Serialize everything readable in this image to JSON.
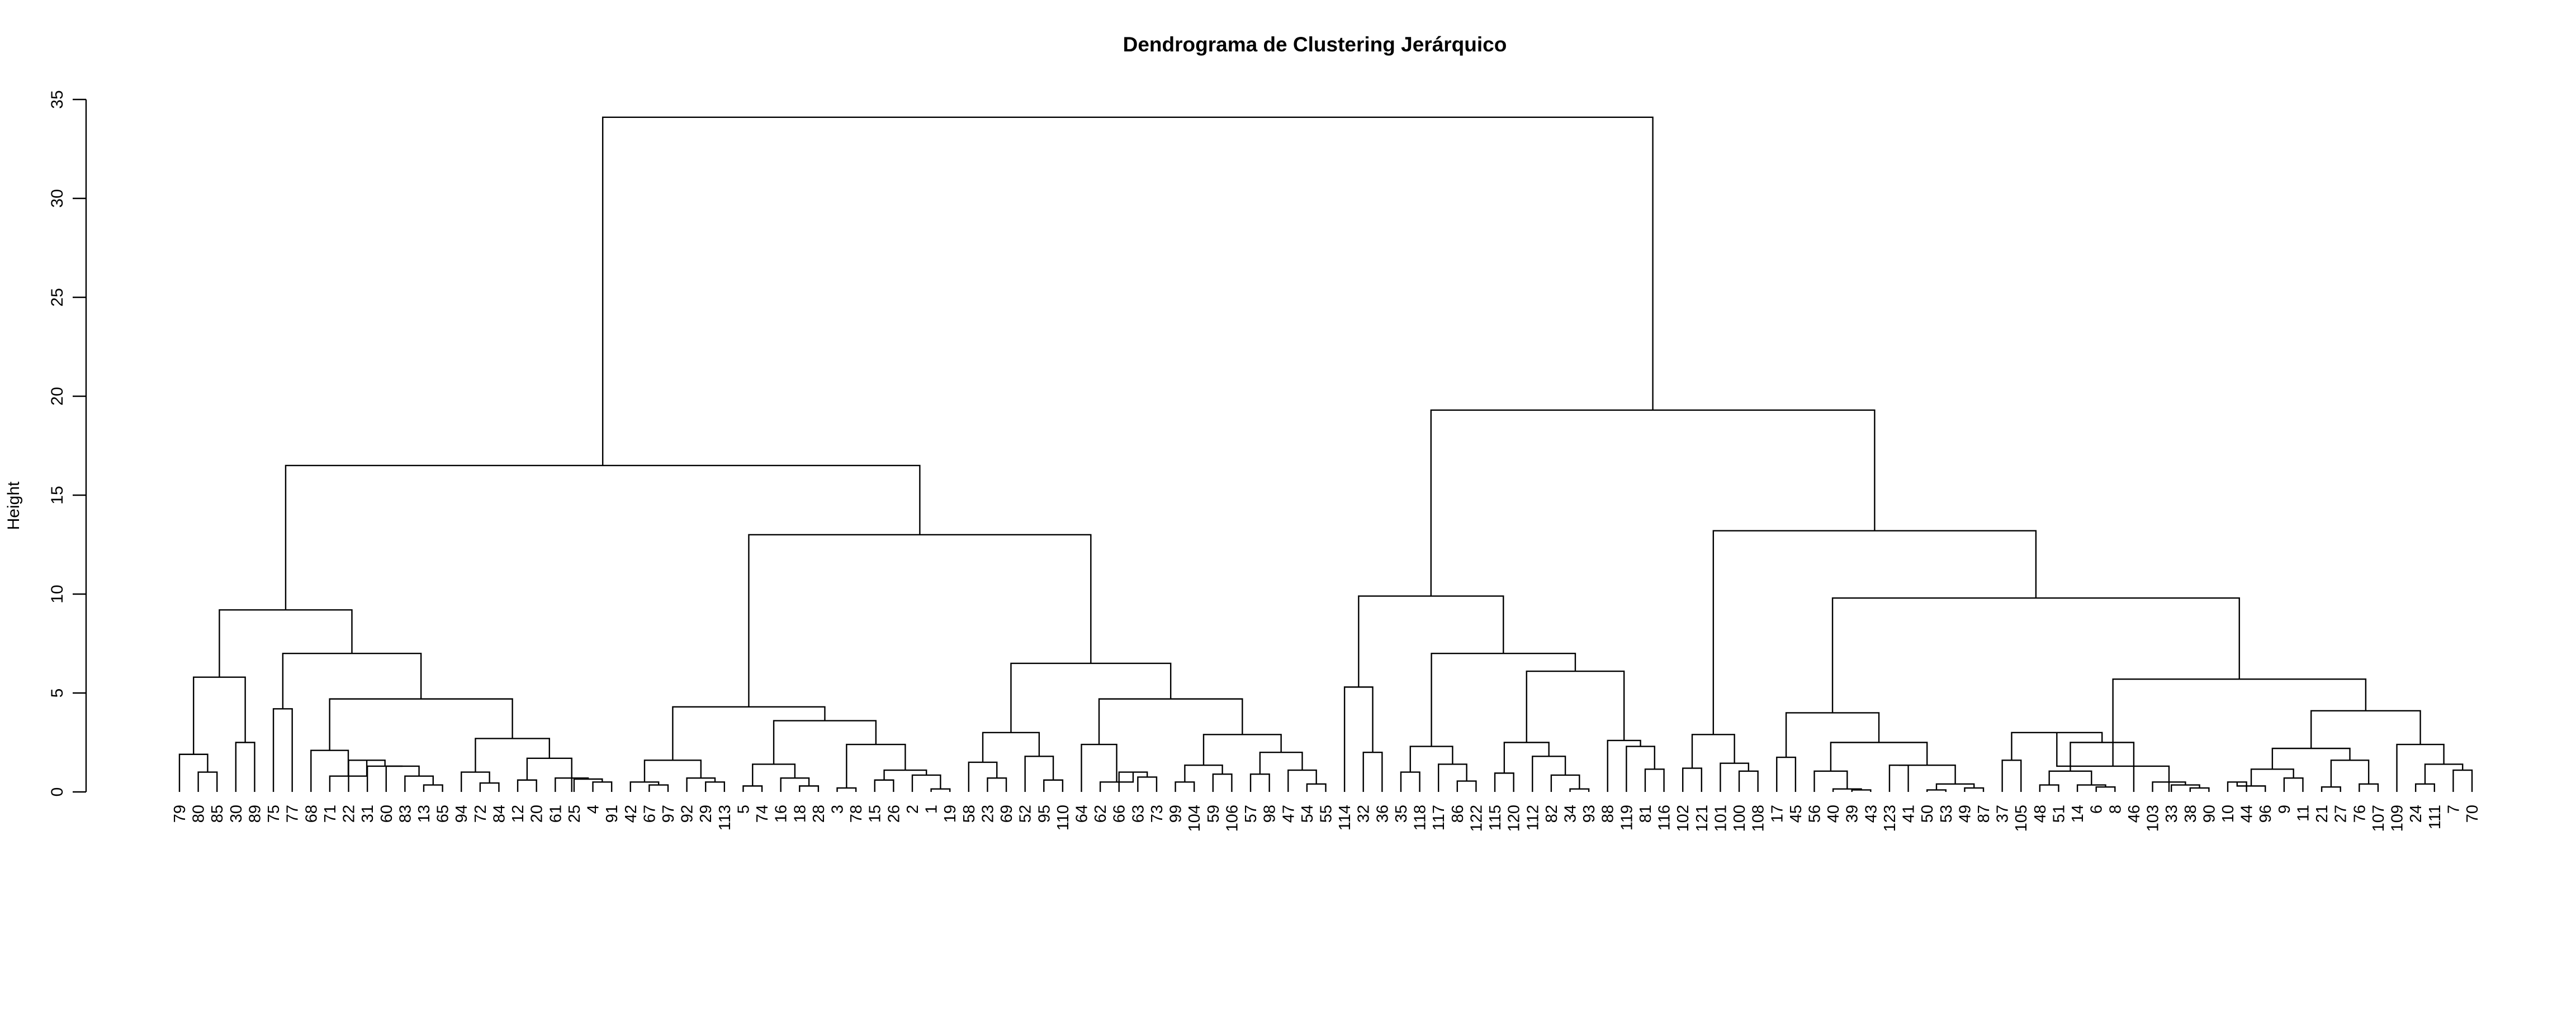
{
  "chart_data": {
    "type": "dendrogram",
    "title": "Dendrograma de Clustering Jerárquico",
    "ylabel": "Height",
    "xlabel": "",
    "ylim": [
      0,
      35
    ],
    "yticks": [
      "0",
      "5",
      "10",
      "15",
      "20",
      "25",
      "30",
      "35"
    ],
    "leaf_order": [
      "79",
      "80",
      "85",
      "30",
      "89",
      "75",
      "77",
      "68",
      "71",
      "22",
      "31",
      "60",
      "83",
      "13",
      "65",
      "94",
      "72",
      "84",
      "12",
      "20",
      "61",
      "25",
      "4",
      "91",
      "42",
      "67",
      "97",
      "92",
      "29",
      "113",
      "5",
      "74",
      "16",
      "18",
      "28",
      "3",
      "78",
      "15",
      "26",
      "2",
      "1",
      "19",
      "58",
      "23",
      "69",
      "52",
      "95",
      "110",
      "64",
      "62",
      "66",
      "63",
      "73",
      "99",
      "104",
      "59",
      "106",
      "57",
      "98",
      "47",
      "54",
      "55",
      "114",
      "32",
      "36",
      "35",
      "118",
      "117",
      "86",
      "122",
      "115",
      "120",
      "112",
      "82",
      "34",
      "93",
      "88",
      "119",
      "81",
      "116",
      "102",
      "121",
      "101",
      "100",
      "108",
      "17",
      "45",
      "56",
      "40",
      "39",
      "43",
      "123",
      "41",
      "50",
      "53",
      "49",
      "87",
      "37",
      "105",
      "48",
      "51",
      "14",
      "6",
      "8",
      "46",
      "103",
      "33",
      "38",
      "90",
      "10",
      "44",
      "96",
      "9",
      "11",
      "21",
      "27",
      "76",
      "107",
      "109",
      "24",
      "111",
      "7",
      "70"
    ],
    "merges": [
      [
        0,
        [
          1,
          2
        ],
        2
      ],
      [
        1,
        [
          80,
          85
        ],
        1
      ],
      [
        1,
        [
          79,
          0
        ],
        1.9
      ],
      [
        0,
        [
          30,
          89
        ],
        2.5
      ],
      [
        1,
        [
          2,
          3
        ],
        5.8
      ],
      [
        0,
        [
          75,
          77
        ],
        4.2
      ],
      [
        0,
        [
          68,
          0
        ],
        2.1
      ],
      [
        0,
        [
          71,
          0
        ],
        1.9
      ],
      [
        0,
        [
          22,
          0
        ],
        1.6
      ],
      [
        0,
        [
          31,
          0
        ],
        1.3
      ],
      [
        0,
        [
          60,
          0
        ],
        1.3
      ],
      [
        0,
        [
          83,
          0
        ],
        0.8
      ],
      [
        0,
        [
          13,
          65
        ],
        0.35
      ],
      [
        0,
        [
          94,
          0
        ],
        2.7
      ],
      [
        0,
        [
          72,
          0
        ],
        1.0
      ],
      [
        0,
        [
          84,
          0
        ],
        0.45
      ],
      [
        0,
        [
          12,
          0
        ],
        1.7
      ],
      [
        0,
        [
          20,
          0
        ],
        0.6
      ],
      [
        0,
        [
          61,
          0
        ],
        0.7
      ],
      [
        0,
        [
          25,
          0
        ],
        0.7
      ],
      [
        0,
        [
          4,
          91
        ],
        0.5
      ]
    ],
    "top_merges": [
      {
        "left": "79..77",
        "right": "68..91",
        "height": 7.0,
        "inner": [
          {
            "left": "79..89",
            "right": "75..77",
            "height": 9.2
          }
        ]
      },
      {
        "height": 16.5,
        "desc": "left root child"
      },
      {
        "height": 13.0
      },
      {
        "height": 34.1,
        "desc": "root"
      },
      {
        "height": 19.3
      },
      {
        "height": 13.2
      },
      {
        "height": 9.8
      }
    ]
  }
}
